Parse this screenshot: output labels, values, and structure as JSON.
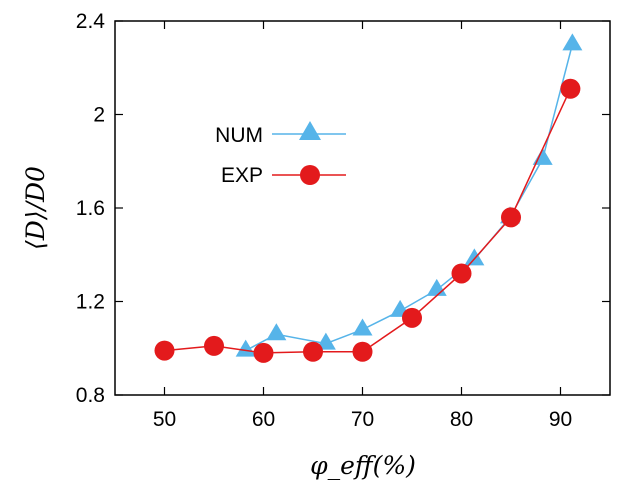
{
  "chart_data": {
    "type": "line",
    "title": "",
    "xlabel": "φ_eff(%)",
    "ylabel": "⟨D⟩/D0",
    "xlim": [
      45,
      95
    ],
    "ylim": [
      0.8,
      2.4
    ],
    "xticks": [
      50,
      60,
      70,
      80,
      90
    ],
    "yticks": [
      0.8,
      1.2,
      1.6,
      2,
      2.4
    ],
    "xtick_labels": [
      "50",
      "60",
      "70",
      "80",
      "90"
    ],
    "ytick_labels": [
      "0.8",
      "1.2",
      "1.6",
      "2",
      "2.4"
    ],
    "legend_position": "left-center",
    "series": [
      {
        "name": "NUM",
        "color": "#56B4E9",
        "marker": "triangle",
        "x": [
          58.2,
          61.3,
          66.3,
          70.0,
          73.8,
          77.5,
          81.3,
          84.9,
          88.2,
          91.2
        ],
        "y": [
          0.99,
          1.06,
          1.02,
          1.08,
          1.16,
          1.25,
          1.38,
          1.56,
          1.81,
          2.3
        ]
      },
      {
        "name": "EXP",
        "color": "#E31A1C",
        "marker": "circle",
        "x": [
          50.0,
          55.0,
          60.0,
          65.0,
          70.0,
          75.0,
          80.0,
          85.0,
          91.0
        ],
        "y": [
          0.99,
          1.01,
          0.98,
          0.985,
          0.985,
          1.13,
          1.32,
          1.56,
          2.11
        ]
      }
    ]
  }
}
